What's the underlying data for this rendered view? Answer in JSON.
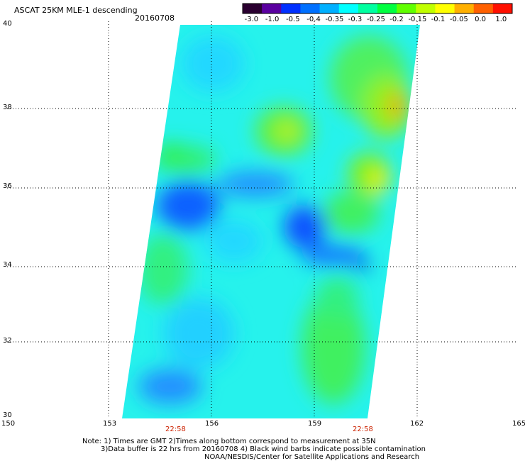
{
  "header": {
    "title": "ASCAT 25KM MLE-1 descending",
    "date": "20160708"
  },
  "colorbar": {
    "labels": [
      "-3.0",
      "-1.0",
      "-0.5",
      "-0.4",
      "-0.35",
      "-0.3",
      "-0.25",
      "-0.2",
      "-0.15",
      "-0.1",
      "-0.05",
      "0.0",
      "1.0"
    ],
    "colors": [
      "#2a0030",
      "#5a00a0",
      "#0030ff",
      "#0070ff",
      "#00b0ff",
      "#00ffff",
      "#00ffa0",
      "#00ff40",
      "#60ff00",
      "#c0ff00",
      "#ffff00",
      "#ffb000",
      "#ff6000",
      "#ff1000"
    ]
  },
  "axes": {
    "x_ticks": [
      "150",
      "153",
      "156",
      "159",
      "162",
      "165"
    ],
    "y_ticks": [
      "40",
      "38",
      "36",
      "34",
      "32",
      "30"
    ],
    "lon_range": [
      150,
      165
    ],
    "lat_range": [
      30,
      40
    ]
  },
  "times": [
    "22:58",
    "22:58"
  ],
  "notes": {
    "line1": "Note: 1) Times are GMT 2)Times along bottom correspond to measurement at 35N",
    "line2": "3)Data buffer is 22 hrs from 20160708 4) Black wind barbs indicate possible contamination",
    "line3": "NOAA/NESDIS/Center for Satellite Applications and Research"
  }
}
